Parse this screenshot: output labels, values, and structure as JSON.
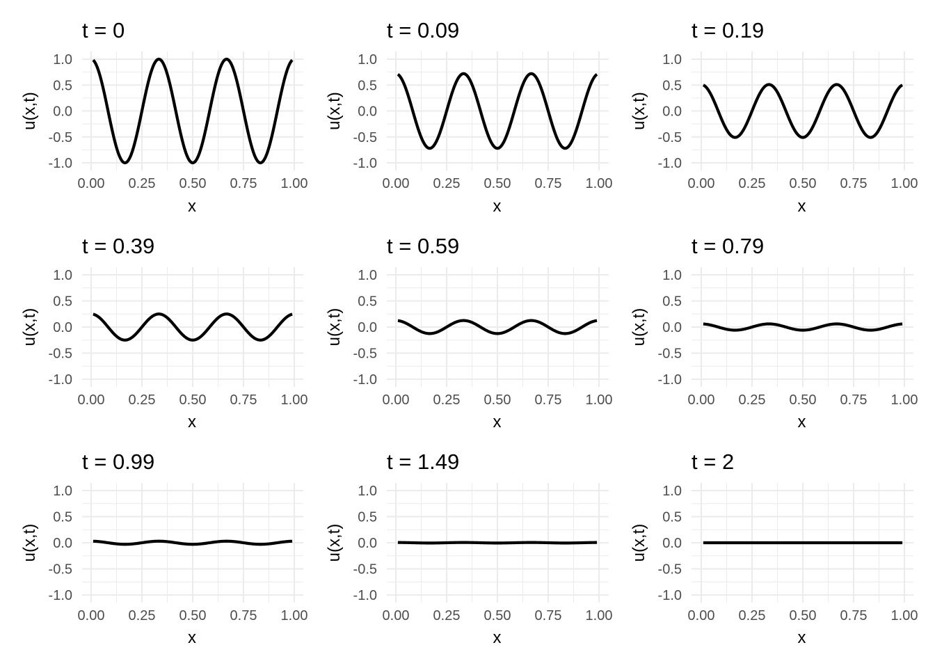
{
  "chart_data": [
    {
      "type": "line",
      "title": "t = 0",
      "xlabel": "x",
      "ylabel": "u(x,t)",
      "xlim": [
        0,
        1
      ],
      "ylim": [
        -1,
        1
      ],
      "x_ticks": [
        "0.00",
        "0.25",
        "0.50",
        "0.75",
        "1.00"
      ],
      "y_ticks": [
        "-1.0",
        "-0.5",
        "0.0",
        "0.5",
        "1.0"
      ],
      "grid": true,
      "function": "A*cos(6*pi*x)",
      "amplitude": 1.0,
      "x_domain": [
        0.01,
        0.99
      ]
    },
    {
      "type": "line",
      "title": "t = 0.09",
      "xlabel": "x",
      "ylabel": "u(x,t)",
      "xlim": [
        0,
        1
      ],
      "ylim": [
        -1,
        1
      ],
      "x_ticks": [
        "0.00",
        "0.25",
        "0.50",
        "0.75",
        "1.00"
      ],
      "y_ticks": [
        "-1.0",
        "-0.5",
        "0.0",
        "0.5",
        "1.0"
      ],
      "grid": true,
      "function": "A*cos(6*pi*x)",
      "amplitude": 0.72,
      "x_domain": [
        0.01,
        0.99
      ]
    },
    {
      "type": "line",
      "title": "t = 0.19",
      "xlabel": "x",
      "ylabel": "u(x,t)",
      "xlim": [
        0,
        1
      ],
      "ylim": [
        -1,
        1
      ],
      "x_ticks": [
        "0.00",
        "0.25",
        "0.50",
        "0.75",
        "1.00"
      ],
      "y_ticks": [
        "-1.0",
        "-0.5",
        "0.0",
        "0.5",
        "1.0"
      ],
      "grid": true,
      "function": "A*cos(6*pi*x)",
      "amplitude": 0.51,
      "x_domain": [
        0.01,
        0.99
      ]
    },
    {
      "type": "line",
      "title": "t = 0.39",
      "xlabel": "x",
      "ylabel": "u(x,t)",
      "xlim": [
        0,
        1
      ],
      "ylim": [
        -1,
        1
      ],
      "x_ticks": [
        "0.00",
        "0.25",
        "0.50",
        "0.75",
        "1.00"
      ],
      "y_ticks": [
        "-1.0",
        "-0.5",
        "0.0",
        "0.5",
        "1.0"
      ],
      "grid": true,
      "function": "A*cos(6*pi*x)",
      "amplitude": 0.25,
      "x_domain": [
        0.01,
        0.99
      ]
    },
    {
      "type": "line",
      "title": "t = 0.59",
      "xlabel": "x",
      "ylabel": "u(x,t)",
      "xlim": [
        0,
        1
      ],
      "ylim": [
        -1,
        1
      ],
      "x_ticks": [
        "0.00",
        "0.25",
        "0.50",
        "0.75",
        "1.00"
      ],
      "y_ticks": [
        "-1.0",
        "-0.5",
        "0.0",
        "0.5",
        "1.0"
      ],
      "grid": true,
      "function": "A*cos(6*pi*x)",
      "amplitude": 0.125,
      "x_domain": [
        0.01,
        0.99
      ]
    },
    {
      "type": "line",
      "title": "t = 0.79",
      "xlabel": "x",
      "ylabel": "u(x,t)",
      "xlim": [
        0,
        1
      ],
      "ylim": [
        -1,
        1
      ],
      "x_ticks": [
        "0.00",
        "0.25",
        "0.50",
        "0.75",
        "1.00"
      ],
      "y_ticks": [
        "-1.0",
        "-0.5",
        "0.0",
        "0.5",
        "1.0"
      ],
      "grid": true,
      "function": "A*cos(6*pi*x)",
      "amplitude": 0.06,
      "x_domain": [
        0.01,
        0.99
      ]
    },
    {
      "type": "line",
      "title": "t = 0.99",
      "xlabel": "x",
      "ylabel": "u(x,t)",
      "xlim": [
        0,
        1
      ],
      "ylim": [
        -1,
        1
      ],
      "x_ticks": [
        "0.00",
        "0.25",
        "0.50",
        "0.75",
        "1.00"
      ],
      "y_ticks": [
        "-1.0",
        "-0.5",
        "0.0",
        "0.5",
        "1.0"
      ],
      "grid": true,
      "function": "A*cos(6*pi*x)",
      "amplitude": 0.03,
      "x_domain": [
        0.01,
        0.99
      ]
    },
    {
      "type": "line",
      "title": "t = 1.49",
      "xlabel": "x",
      "ylabel": "u(x,t)",
      "xlim": [
        0,
        1
      ],
      "ylim": [
        -1,
        1
      ],
      "x_ticks": [
        "0.00",
        "0.25",
        "0.50",
        "0.75",
        "1.00"
      ],
      "y_ticks": [
        "-1.0",
        "-0.5",
        "0.0",
        "0.5",
        "1.0"
      ],
      "grid": true,
      "function": "A*cos(6*pi*x)",
      "amplitude": 0.005,
      "x_domain": [
        0.01,
        0.99
      ]
    },
    {
      "type": "line",
      "title": "t = 2",
      "xlabel": "x",
      "ylabel": "u(x,t)",
      "xlim": [
        0,
        1
      ],
      "ylim": [
        -1,
        1
      ],
      "x_ticks": [
        "0.00",
        "0.25",
        "0.50",
        "0.75",
        "1.00"
      ],
      "y_ticks": [
        "-1.0",
        "-0.5",
        "0.0",
        "0.5",
        "1.0"
      ],
      "grid": true,
      "function": "A*cos(6*pi*x)",
      "amplitude": 0.0,
      "x_domain": [
        0.01,
        0.99
      ]
    }
  ],
  "colors": {
    "line": "#000000",
    "grid": "#ebebeb",
    "tick_text": "#4d4d4d",
    "background": "#ffffff"
  }
}
